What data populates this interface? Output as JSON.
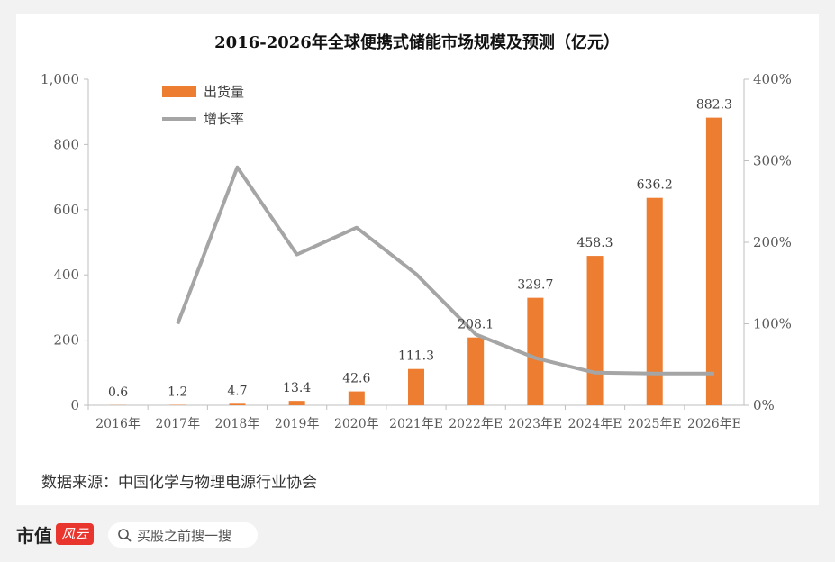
{
  "chart_data": {
    "type": "bar+line",
    "title": "2016-2026年全球便携式储能市场规模及预测（亿元）",
    "categories": [
      "2016年",
      "2017年",
      "2018年",
      "2019年",
      "2020年",
      "2021年E",
      "2022年E",
      "2023年E",
      "2024年E",
      "2025年E",
      "2026年E"
    ],
    "series": [
      {
        "name": "出货量",
        "type": "bar",
        "axis": "left",
        "color": "#ed7d31",
        "values": [
          0.6,
          1.2,
          4.7,
          13.4,
          42.6,
          111.3,
          208.1,
          329.7,
          458.3,
          636.2,
          882.3
        ],
        "labels": [
          "0.6",
          "1.2",
          "4.7",
          "13.4",
          "42.6",
          "111.3",
          "208.1",
          "329.7",
          "458.3",
          "636.2",
          "882.3"
        ]
      },
      {
        "name": "增长率",
        "type": "line",
        "axis": "right",
        "color": "#a5a5a5",
        "values": [
          null,
          100,
          292,
          185,
          218,
          161,
          87,
          58,
          40,
          39,
          39
        ]
      }
    ],
    "y_left": {
      "min": 0,
      "max": 1000,
      "ticks": [
        0,
        200,
        400,
        600,
        800,
        1000
      ],
      "tick_labels": [
        "0",
        "200",
        "400",
        "600",
        "800",
        "1,000"
      ]
    },
    "y_right": {
      "min": 0,
      "max": 400,
      "ticks": [
        0,
        100,
        200,
        300,
        400
      ],
      "tick_labels": [
        "0%",
        "100%",
        "200%",
        "300%",
        "400%"
      ]
    },
    "legend_position": "top-left",
    "grid": false
  },
  "source_text": "数据来源：中国化学与物理电源行业协会",
  "footer": {
    "logo_text": "市值",
    "logo_badge": "风云",
    "search_placeholder": "买股之前搜一搜"
  }
}
